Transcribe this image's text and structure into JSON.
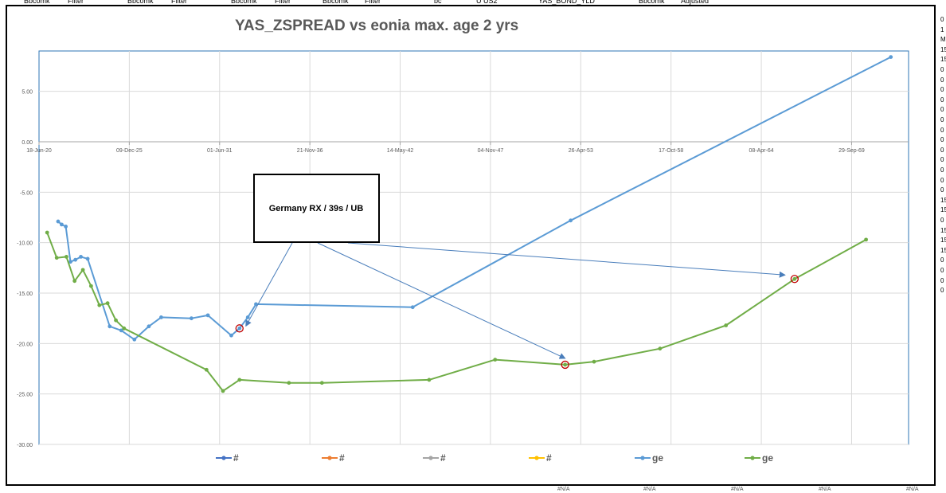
{
  "sheet": {
    "header_cells": [
      "Bbcomk",
      "Filter",
      "Bbcomk",
      "Filter",
      "Bbcomk",
      "Filter",
      "Bbcomk",
      "Filter",
      "bc",
      "U US2",
      "YAS_BOND_YLD",
      "Bbcomk",
      "Adjusted"
    ],
    "right_cells": [
      "0",
      "1",
      "M",
      "15",
      "15",
      "0",
      "0",
      "0",
      "0",
      "0",
      "0",
      "0",
      "0",
      "0",
      "0",
      "0",
      "0",
      "0",
      "15",
      "15",
      "0",
      "15",
      "15",
      "15",
      "0",
      "0",
      "0",
      "0"
    ],
    "bottom_cells": [
      "#N/A",
      "#N/A",
      "#N/A",
      "#N/A",
      "#N/A",
      "#N/A",
      "#N/A",
      "#N/A",
      "#N/A",
      "#N/A"
    ]
  },
  "callout": {
    "text": "Germany RX / 39s / UB"
  },
  "colors": {
    "blue": "#5B9BD5",
    "green": "#70AD47",
    "circle": "#C00000",
    "arrow": "#4A7EBB",
    "grid": "#D9D9D9",
    "axis": "#A6A6A6"
  },
  "chart_data": {
    "type": "line",
    "title": "YAS_ZSPREAD vs eonia max. age 2 yrs",
    "xlabel": "",
    "ylabel": "",
    "x_axis_type": "date",
    "xlim": [
      "2020-06-18",
      "2073-03-14"
    ],
    "ylim": [
      -30,
      9
    ],
    "y_ticks": [
      5,
      0,
      -5,
      -10,
      -15,
      -20,
      -25,
      -30
    ],
    "y_tick_labels": [
      "5.00",
      "0.00",
      "-5.00",
      "-10.00",
      "-15.00",
      "-20.00",
      "-25.00",
      "-30.00"
    ],
    "x_ticks": [
      "2020-06-18",
      "2025-12-09",
      "2031-06-01",
      "2036-11-21",
      "2042-05-14",
      "2047-11-04",
      "2053-04-26",
      "2058-10-17",
      "2064-04-08",
      "2069-09-29"
    ],
    "x_tick_labels": [
      "18-Jun-20",
      "09-Dec-25",
      "01-Jun-31",
      "21-Nov-36",
      "14-May-42",
      "04-Nov-47",
      "26-Apr-53",
      "17-Oct-58",
      "08-Apr-64",
      "29-Sep-69"
    ],
    "grid": true,
    "legend_position": "bottom",
    "legend": [
      {
        "name": "#",
        "color": "#4472C4"
      },
      {
        "name": "#",
        "color": "#ED7D31"
      },
      {
        "name": "#",
        "color": "#A5A5A5"
      },
      {
        "name": "#",
        "color": "#FFC000"
      },
      {
        "name": "ge",
        "color": "#5B9BD5"
      },
      {
        "name": "ge",
        "color": "#70AD47"
      }
    ],
    "series": [
      {
        "name": "ge",
        "color": "#5B9BD5",
        "points": [
          [
            "2021-08-15",
            -7.9
          ],
          [
            "2021-11-01",
            -8.2
          ],
          [
            "2022-02-01",
            -8.4
          ],
          [
            "2022-05-15",
            -11.9
          ],
          [
            "2022-09-01",
            -11.7
          ],
          [
            "2023-01-01",
            -11.4
          ],
          [
            "2023-06-01",
            -11.6
          ],
          [
            "2024-10-01",
            -18.3
          ],
          [
            "2025-06-15",
            -18.7
          ],
          [
            "2026-04-01",
            -19.6
          ],
          [
            "2027-02-15",
            -18.3
          ],
          [
            "2027-11-15",
            -17.4
          ],
          [
            "2029-09-15",
            -17.5
          ],
          [
            "2030-09-15",
            -17.2
          ],
          [
            "2032-02-15",
            -19.2
          ],
          [
            "2032-08-15",
            -18.5
          ],
          [
            "2033-02-15",
            -17.4
          ],
          [
            "2033-08-15",
            -16.1
          ],
          [
            "2043-02-15",
            -16.4
          ],
          [
            "2052-09-15",
            -7.8
          ],
          [
            "2072-02-15",
            8.4
          ]
        ]
      },
      {
        "name": "ge",
        "color": "#70AD47",
        "points": [
          [
            "2020-12-15",
            -9.0
          ],
          [
            "2021-07-15",
            -11.5
          ],
          [
            "2022-02-15",
            -11.4
          ],
          [
            "2022-08-15",
            -13.8
          ],
          [
            "2023-02-15",
            -12.7
          ],
          [
            "2023-08-15",
            -14.3
          ],
          [
            "2024-02-15",
            -16.2
          ],
          [
            "2024-08-15",
            -16.0
          ],
          [
            "2025-02-15",
            -17.7
          ],
          [
            "2025-08-15",
            -18.5
          ],
          [
            "2030-08-15",
            -22.6
          ],
          [
            "2031-08-15",
            -24.7
          ],
          [
            "2032-08-15",
            -23.6
          ],
          [
            "2035-08-15",
            -23.9
          ],
          [
            "2037-08-15",
            -23.9
          ],
          [
            "2044-02-15",
            -23.6
          ],
          [
            "2048-02-15",
            -21.6
          ],
          [
            "2052-05-15",
            -22.1
          ],
          [
            "2054-02-15",
            -21.8
          ],
          [
            "2058-02-15",
            -20.5
          ],
          [
            "2062-02-15",
            -18.2
          ],
          [
            "2066-04-15",
            -13.6
          ],
          [
            "2070-08-15",
            -9.7
          ]
        ]
      }
    ]
  }
}
